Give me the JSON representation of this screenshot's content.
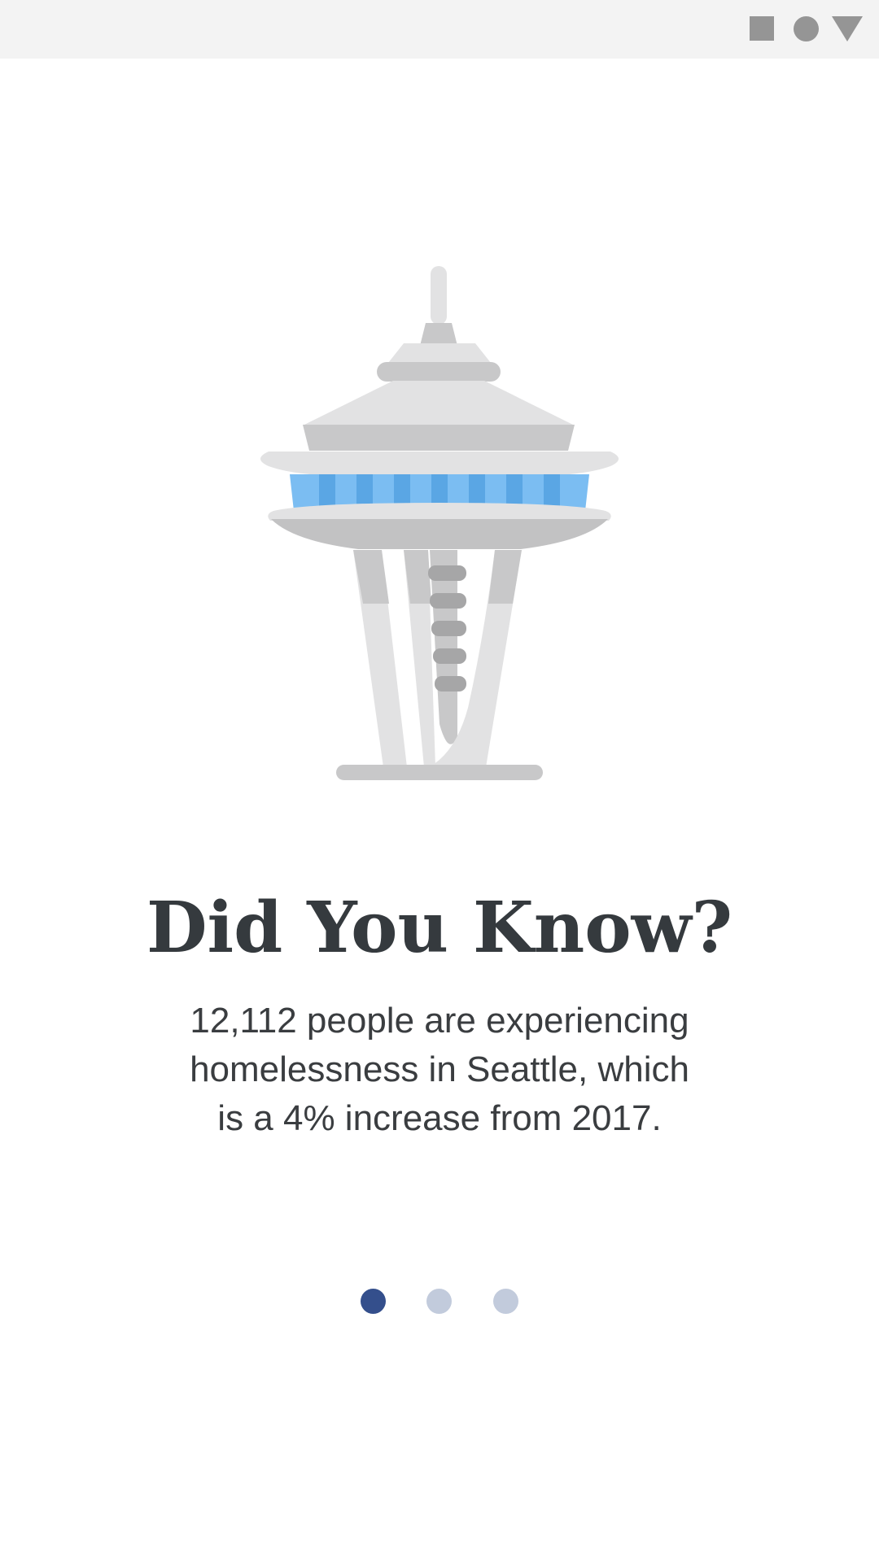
{
  "status_bar": {
    "icons": [
      "stop-square-icon",
      "record-circle-icon",
      "signal-triangle-icon"
    ],
    "icon_color": "#959595",
    "background": "#f3f3f3"
  },
  "illustration": {
    "subject": "space-needle-icon",
    "colors": {
      "light_gray": "#e2e2e3",
      "mid_gray": "#c8c8c9",
      "dark_gray": "#a6a6a7",
      "window_blue": "#7bbdf2",
      "window_blue_dark": "#5aa6e4"
    }
  },
  "card": {
    "title": "Did You Know?",
    "body_lines": [
      "12,112 people are experiencing",
      "homelessness in Seattle, which",
      "is a 4% increase from 2017."
    ]
  },
  "pagination": {
    "current_page": 1,
    "total_pages": 3,
    "active_color": "#344f8c",
    "inactive_color": "#c2cbdc"
  }
}
